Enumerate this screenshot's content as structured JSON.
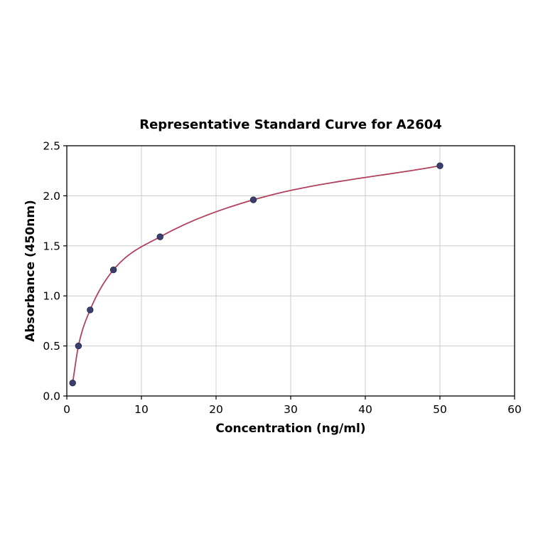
{
  "chart_data": {
    "type": "line",
    "title": "Representative Standard Curve for A2604",
    "xlabel": "Concentration (ng/ml)",
    "ylabel": "Absorbance (450nm)",
    "xlim": [
      0,
      60
    ],
    "ylim": [
      0,
      2.5
    ],
    "xticks": {
      "values": [
        0,
        10,
        20,
        30,
        40,
        50,
        60
      ],
      "labels": [
        "0",
        "10",
        "20",
        "30",
        "40",
        "50",
        "60"
      ]
    },
    "yticks": {
      "values": [
        0,
        0.5,
        1.0,
        1.5,
        2.0,
        2.5
      ],
      "labels": [
        "0.0",
        "0.5",
        "1.0",
        "1.5",
        "2.0",
        "2.5"
      ]
    },
    "grid": true,
    "grid_color": "#cccccc",
    "axis_color": "#000000",
    "legend": "none",
    "series": [
      {
        "name": "standard-curve",
        "x": [
          0.78,
          1.56,
          3.125,
          6.25,
          12.5,
          25,
          50
        ],
        "y": [
          0.13,
          0.5,
          0.86,
          1.26,
          1.59,
          1.96,
          2.3
        ],
        "line_color": "#b0425f",
        "marker_color": "#3b3f6e",
        "marker_edge_color": "#24264a"
      }
    ]
  }
}
